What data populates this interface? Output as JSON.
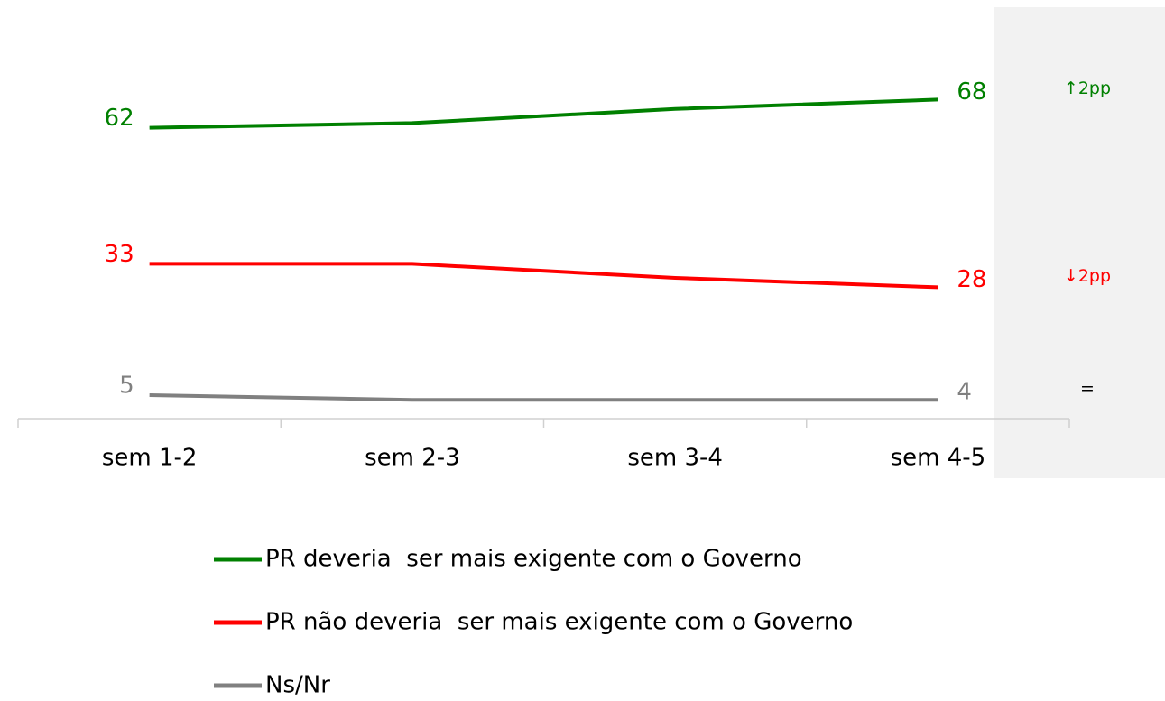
{
  "chart_data": {
    "type": "line",
    "categories": [
      "sem 1-2",
      "sem 2-3",
      "sem 3-4",
      "sem 4-5"
    ],
    "series": [
      {
        "name": "PR deveria  ser mais exigente com o Governo",
        "color": "#008000",
        "values": [
          62,
          63,
          66,
          68
        ]
      },
      {
        "name": "PR não deveria  ser mais exigente com o Governo",
        "color": "#ff0000",
        "values": [
          33,
          33,
          30,
          28
        ]
      },
      {
        "name": "Ns/Nr",
        "color": "#808080",
        "values": [
          5,
          4,
          4,
          4
        ]
      }
    ],
    "annotations": [
      {
        "text": "↑2pp",
        "color": "#008000"
      },
      {
        "text": "↓2pp",
        "color": "#ff0000"
      },
      {
        "text": "=",
        "color": "#000000"
      }
    ],
    "ylim": [
      0,
      70
    ]
  }
}
